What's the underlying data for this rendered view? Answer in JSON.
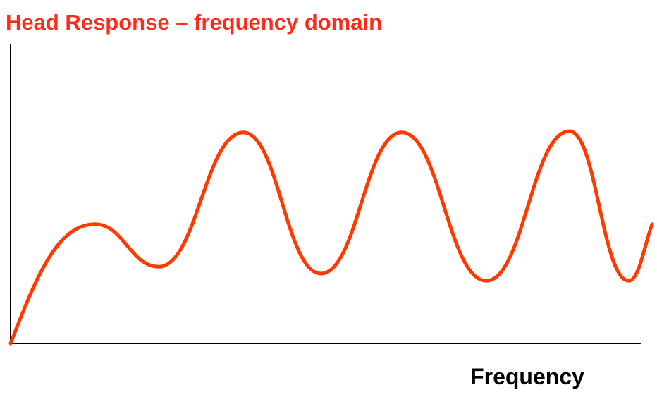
{
  "chart_data": {
    "type": "line",
    "title": "Head Response – frequency domain",
    "xlabel": "Frequency",
    "xlim": [
      0,
      100
    ],
    "ylim": [
      0,
      100
    ],
    "series": [
      {
        "color": "#ff3a00",
        "x": [
          0,
          13.4,
          23.5,
          36.9,
          49.2,
          62.0,
          75.4,
          88.6,
          98.0,
          101.7
        ],
        "values": [
          0,
          39.8,
          25.6,
          70.4,
          23.3,
          70.4,
          20.9,
          70.8,
          20.9,
          39.8
        ]
      }
    ]
  }
}
